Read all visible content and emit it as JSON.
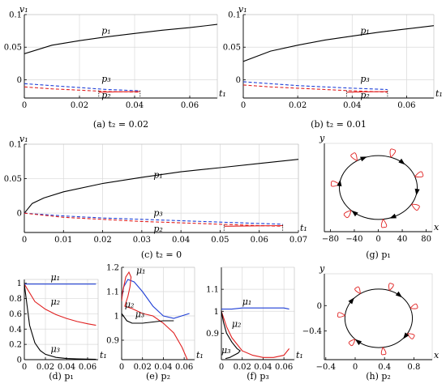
{
  "chart_data": [
    {
      "id": "a",
      "type": "line",
      "caption": "(a) t₂ = 0.02",
      "xlabel": "t₁",
      "ylabel": "v₁",
      "xlim": [
        0,
        0.07
      ],
      "ylim": [
        -0.028,
        0.1
      ],
      "xticks": [
        "0",
        "0.02",
        "0.04",
        "0.06"
      ],
      "xtickvals": [
        0,
        0.02,
        0.04,
        0.06
      ],
      "yticks": [
        "0",
        "0.05",
        "0.1"
      ],
      "ytickvals": [
        0,
        0.05,
        0.1
      ],
      "grid": true,
      "series": [
        {
          "name": "p₁",
          "color": "#000000",
          "dash": false,
          "x": [
            0,
            0.01,
            0.02,
            0.03,
            0.04,
            0.05,
            0.06,
            0.07
          ],
          "y": [
            0.04,
            0.053,
            0.06,
            0.066,
            0.071,
            0.076,
            0.08,
            0.085
          ]
        },
        {
          "name": "p₃",
          "color": "#1f3fd6",
          "dash": true,
          "x": [
            0,
            0.01,
            0.02,
            0.03,
            0.042
          ],
          "y": [
            -0.006,
            -0.009,
            -0.012,
            -0.015,
            -0.017
          ]
        },
        {
          "name": "p₂",
          "color": "#e02020",
          "dash": true,
          "x": [
            0,
            0.01,
            0.02,
            0.03,
            0.042
          ],
          "y": [
            -0.011,
            -0.014,
            -0.016,
            -0.018,
            -0.019
          ]
        },
        {
          "name": "",
          "color": "#e02020",
          "dash": false,
          "x": [
            0.027,
            0.042
          ],
          "y": [
            -0.019,
            -0.018
          ]
        }
      ],
      "labels": [
        {
          "text": "p₁",
          "x": 0.028,
          "y": 0.071
        },
        {
          "text": "p₃",
          "x": 0.028,
          "y": -0.003
        },
        {
          "text": "p₂",
          "x": 0.028,
          "y": -0.028
        }
      ],
      "vlines": [
        0.027,
        0.042
      ]
    },
    {
      "id": "b",
      "type": "line",
      "caption": "(b) t₂ = 0.01",
      "xlabel": "t₁",
      "ylabel": "v₁",
      "xlim": [
        0,
        0.07
      ],
      "ylim": [
        -0.028,
        0.1
      ],
      "xticks": [
        "0",
        "0.02",
        "0.04",
        "0.06"
      ],
      "xtickvals": [
        0,
        0.02,
        0.04,
        0.06
      ],
      "yticks": [
        "0",
        "0.05",
        "0.1"
      ],
      "ytickvals": [
        0,
        0.05,
        0.1
      ],
      "grid": true,
      "series": [
        {
          "name": "p₁",
          "color": "#000000",
          "dash": false,
          "x": [
            0,
            0.01,
            0.02,
            0.03,
            0.04,
            0.05,
            0.06,
            0.07
          ],
          "y": [
            0.028,
            0.044,
            0.053,
            0.061,
            0.067,
            0.073,
            0.078,
            0.083
          ]
        },
        {
          "name": "p₃",
          "color": "#1f3fd6",
          "dash": true,
          "x": [
            0,
            0.01,
            0.02,
            0.03,
            0.04,
            0.053
          ],
          "y": [
            -0.003,
            -0.006,
            -0.009,
            -0.011,
            -0.013,
            -0.015
          ]
        },
        {
          "name": "p₂",
          "color": "#e02020",
          "dash": true,
          "x": [
            0,
            0.01,
            0.02,
            0.03,
            0.04,
            0.053
          ],
          "y": [
            -0.008,
            -0.011,
            -0.013,
            -0.015,
            -0.017,
            -0.019
          ]
        },
        {
          "name": "",
          "color": "#e02020",
          "dash": false,
          "x": [
            0.038,
            0.053
          ],
          "y": [
            -0.019,
            -0.018
          ]
        }
      ],
      "labels": [
        {
          "text": "p₁",
          "x": 0.043,
          "y": 0.071
        },
        {
          "text": "p₃",
          "x": 0.043,
          "y": -0.003
        },
        {
          "text": "p₂",
          "x": 0.043,
          "y": -0.028
        }
      ],
      "vlines": [
        0.038,
        0.053
      ]
    },
    {
      "id": "c",
      "type": "line",
      "caption": "(c) t₂ = 0",
      "xlabel": "t₁",
      "ylabel": "v₁",
      "xlim": [
        0,
        0.07
      ],
      "ylim": [
        -0.028,
        0.1
      ],
      "xticks": [
        "0",
        "0.01",
        "0.02",
        "0.03",
        "0.04",
        "0.05",
        "0.06",
        "0.07"
      ],
      "xtickvals": [
        0,
        0.01,
        0.02,
        0.03,
        0.04,
        0.05,
        0.06,
        0.07
      ],
      "yticks": [
        "0",
        "0.05",
        "0.1"
      ],
      "ytickvals": [
        0,
        0.05,
        0.1
      ],
      "grid": true,
      "series": [
        {
          "name": "p₁",
          "color": "#000000",
          "dash": false,
          "x": [
            0,
            0.002,
            0.005,
            0.01,
            0.02,
            0.03,
            0.04,
            0.05,
            0.06,
            0.07
          ],
          "y": [
            0,
            0.014,
            0.022,
            0.031,
            0.043,
            0.052,
            0.06,
            0.066,
            0.072,
            0.078
          ]
        },
        {
          "name": "p₃",
          "color": "#1f3fd6",
          "dash": true,
          "x": [
            0,
            0.01,
            0.02,
            0.03,
            0.04,
            0.05,
            0.06,
            0.066
          ],
          "y": [
            0,
            -0.004,
            -0.007,
            -0.009,
            -0.011,
            -0.013,
            -0.015,
            -0.016
          ]
        },
        {
          "name": "p₂",
          "color": "#e02020",
          "dash": true,
          "x": [
            0,
            0.01,
            0.02,
            0.03,
            0.04,
            0.05,
            0.06,
            0.066
          ],
          "y": [
            0,
            -0.006,
            -0.009,
            -0.012,
            -0.014,
            -0.016,
            -0.018,
            -0.019
          ]
        },
        {
          "name": "",
          "color": "#e02020",
          "dash": false,
          "x": [
            0.051,
            0.066
          ],
          "y": [
            -0.019,
            -0.018
          ]
        }
      ],
      "labels": [
        {
          "text": "p₁",
          "x": 0.033,
          "y": 0.051
        },
        {
          "text": "p₃",
          "x": 0.033,
          "y": -0.004
        },
        {
          "text": "p₂",
          "x": 0.033,
          "y": -0.027
        }
      ],
      "vlines": [
        0.051,
        0.066
      ]
    },
    {
      "id": "d",
      "type": "line",
      "caption": "(d) p₁",
      "xlabel": "t₁",
      "ylabel": "",
      "xlim": [
        0,
        0.07
      ],
      "ylim": [
        0,
        1.05
      ],
      "xticks": [
        "0",
        "0.02",
        "0.04",
        "0.06"
      ],
      "xtickvals": [
        0,
        0.02,
        0.04,
        0.06
      ],
      "yticks": [
        "0",
        "0.2",
        "0.4",
        "0.6",
        "0.8",
        "1"
      ],
      "ytickvals": [
        0,
        0.2,
        0.4,
        0.6,
        0.8,
        1
      ],
      "grid": true,
      "series": [
        {
          "name": "μ₁",
          "color": "#1f3fd6",
          "dash": false,
          "x": [
            0,
            0.068
          ],
          "y": [
            0.99,
            0.99
          ]
        },
        {
          "name": "μ₂",
          "color": "#e02020",
          "dash": false,
          "x": [
            0,
            0.01,
            0.02,
            0.03,
            0.04,
            0.05,
            0.06,
            0.068
          ],
          "y": [
            0.99,
            0.76,
            0.66,
            0.59,
            0.54,
            0.5,
            0.47,
            0.45
          ]
        },
        {
          "name": "μ₃",
          "color": "#000000",
          "dash": false,
          "x": [
            0,
            0.005,
            0.01,
            0.015,
            0.02,
            0.03,
            0.04,
            0.05,
            0.068
          ],
          "y": [
            0.99,
            0.45,
            0.22,
            0.12,
            0.07,
            0.03,
            0.015,
            0.01,
            0.005
          ]
        }
      ],
      "labels": [
        {
          "text": "μ₁",
          "x": 0.025,
          "y": 1.04
        },
        {
          "text": "μ₂",
          "x": 0.025,
          "y": 0.72
        },
        {
          "text": "μ₃",
          "x": 0.025,
          "y": 0.1
        }
      ]
    },
    {
      "id": "e",
      "type": "line",
      "caption": "(e) p₂",
      "xlabel": "t₁",
      "ylabel": "",
      "xlim": [
        0,
        0.07
      ],
      "ylim": [
        0.82,
        1.2
      ],
      "xticks": [
        "0",
        "0.02",
        "0.04",
        "0.06"
      ],
      "xtickvals": [
        0,
        0.02,
        0.04,
        0.06
      ],
      "yticks": [
        "0.9",
        "1",
        "1.1",
        "1.2"
      ],
      "ytickvals": [
        0.9,
        1.0,
        1.1,
        1.2
      ],
      "grid": true,
      "series": [
        {
          "name": "μ₁",
          "color": "#1f3fd6",
          "dash": false,
          "x": [
            0.065,
            0.05,
            0.04,
            0.03,
            0.02,
            0.012,
            0.006,
            0.002,
            0
          ],
          "y": [
            1.01,
            0.99,
            1.0,
            1.04,
            1.1,
            1.14,
            1.15,
            1.12,
            1.07
          ]
        },
        {
          "name": "μ₂",
          "color": "#e02020",
          "dash": false,
          "x": [
            0,
            0.001,
            0.004,
            0.007,
            0.009,
            0.008,
            0.006,
            0.003,
            0.01,
            0.02,
            0.03,
            0.04,
            0.05,
            0.058,
            0.063
          ],
          "y": [
            1.06,
            1.1,
            1.16,
            1.18,
            1.16,
            1.12,
            1.08,
            1.04,
            1.03,
            1.01,
            1.0,
            0.97,
            0.93,
            0.87,
            0.82
          ]
        },
        {
          "name": "μ₃",
          "color": "#000000",
          "dash": false,
          "x": [
            0,
            0.005,
            0.01,
            0.02,
            0.03,
            0.04,
            0.05
          ],
          "y": [
            1.01,
            0.98,
            0.97,
            0.97,
            0.975,
            0.98,
            0.98
          ]
        }
      ],
      "labels": [
        {
          "text": "μ₁",
          "x": 0.014,
          "y": 1.175
        },
        {
          "text": "μ₂",
          "x": 0.003,
          "y": 1.035
        },
        {
          "text": "μ₃",
          "x": 0.013,
          "y": 0.995
        }
      ]
    },
    {
      "id": "f",
      "type": "line",
      "caption": "(f) p₃",
      "xlabel": "t₁",
      "ylabel": "",
      "xlim": [
        0,
        0.07
      ],
      "ylim": [
        0.78,
        1.2
      ],
      "xticks": [
        "0",
        "0.02",
        "0.04",
        "0.06"
      ],
      "xtickvals": [
        0,
        0.02,
        0.04,
        0.06
      ],
      "yticks": [
        "0.9",
        "1",
        "1.1"
      ],
      "ytickvals": [
        0.9,
        1.0,
        1.1
      ],
      "grid": true,
      "series": [
        {
          "name": "μ₁",
          "color": "#1f3fd6",
          "dash": false,
          "x": [
            0,
            0.01,
            0.02,
            0.03,
            0.04,
            0.05,
            0.06,
            0.065
          ],
          "y": [
            1.01,
            1.01,
            1.015,
            1.015,
            1.015,
            1.015,
            1.015,
            1.01
          ]
        },
        {
          "name": "μ₂",
          "color": "#e02020",
          "dash": false,
          "x": [
            0,
            0.005,
            0.01,
            0.015,
            0.02,
            0.03,
            0.04,
            0.05,
            0.06,
            0.065
          ],
          "y": [
            1.0,
            0.93,
            0.88,
            0.85,
            0.82,
            0.8,
            0.79,
            0.79,
            0.8,
            0.83
          ]
        },
        {
          "name": "μ₃",
          "color": "#000000",
          "dash": false,
          "x": [
            0,
            0.002,
            0.005,
            0.01,
            0.015,
            0.018,
            0.016,
            0.012,
            0.008,
            0.004
          ],
          "y": [
            1.0,
            0.95,
            0.9,
            0.86,
            0.83,
            0.82,
            0.81,
            0.8,
            0.79,
            0.785
          ]
        }
      ],
      "labels": [
        {
          "text": "μ₁",
          "x": 0.02,
          "y": 1.03
        },
        {
          "text": "μ₂",
          "x": 0.01,
          "y": 0.93
        },
        {
          "text": "μ₃",
          "x": 0.0,
          "y": 0.81
        }
      ]
    },
    {
      "id": "g",
      "type": "line",
      "caption": "(g) p₁",
      "xlabel": "x",
      "ylabel": "y",
      "xlim": [
        -90,
        90
      ],
      "ylim": [
        -90,
        90
      ],
      "xticks": [
        "−80",
        "−40",
        "0",
        "40",
        "80"
      ],
      "xtickvals": [
        -80,
        -40,
        0,
        40,
        80
      ],
      "yticks": [],
      "ytickvals": [],
      "grid": false,
      "orbit": {
        "cx": 0,
        "cy": 0,
        "r": 65,
        "loops": 7,
        "loopSize": 14,
        "arrows": 6
      }
    },
    {
      "id": "h",
      "type": "line",
      "caption": "(h) p₂",
      "xlabel": "x",
      "ylabel": "y",
      "xlim": [
        -0.42,
        1.05
      ],
      "ylim": [
        -0.85,
        0.5
      ],
      "xticks": [
        "−0.4",
        "0",
        "0.4",
        "0.8"
      ],
      "xtickvals": [
        -0.4,
        0,
        0.4,
        0.8
      ],
      "yticks": [
        "0",
        "−0.4"
      ],
      "ytickvals": [
        0,
        -0.4
      ],
      "grid": false,
      "orbit": {
        "cx": 0.32,
        "cy": -0.2,
        "r": 0.46,
        "loops": 7,
        "loopSize": 0.1,
        "arrows": 4
      }
    }
  ]
}
